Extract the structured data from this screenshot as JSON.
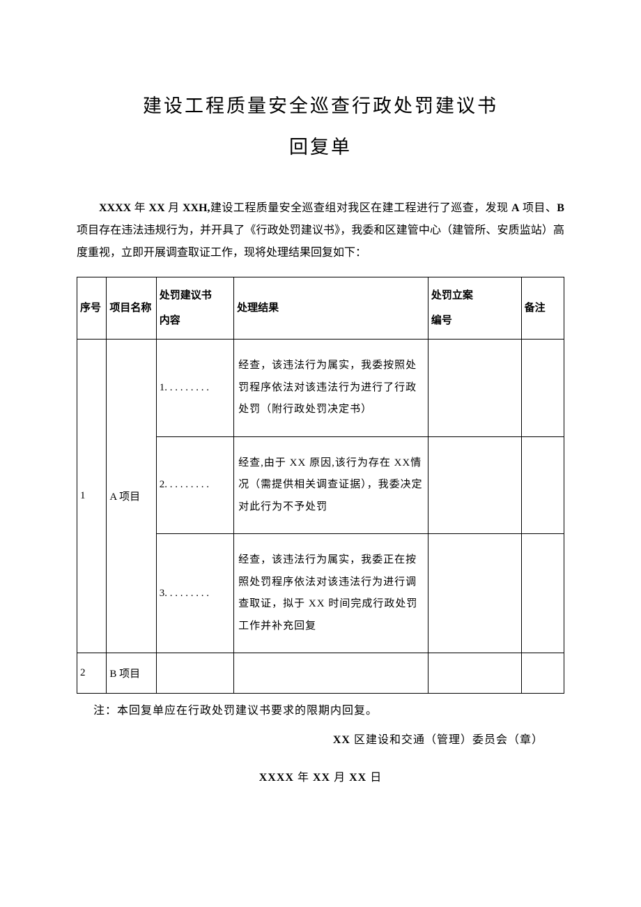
{
  "title_line1": "建设工程质量安全巡查行政处罚建议书",
  "title_line2": "回复单",
  "intro_year": "XXXX",
  "intro_month": "XX",
  "intro_day": "XXH,",
  "intro_part1": "建设工程质量安全巡查组对我区在建工程进行了巡查，发现 ",
  "intro_a": "A",
  "intro_part2": " 项目、",
  "intro_b": "B",
  "intro_part3": " 项目存在违法违规行为，并开具了《行政处罚建议书》，我委和区建管中心（建管所、安质监站）高度重视，立即开展调查取证工作，现将处理结果回复如下：",
  "headers": {
    "seq": "序号",
    "project": "项目名称",
    "suggest_line1": "处罚建议书",
    "suggest_line2": "内容",
    "result": "处理结果",
    "case_line1": "处罚立案",
    "case_line2": "编号",
    "remark": "备注"
  },
  "rows": {
    "row1_seq": "1",
    "row1_project": "A 项目",
    "row1_suggest1": "1. . . . . . . . .",
    "row1_result1": "经查，该违法行为属实，我委按照处罚程序依法对该违法行为进行了行政处罚（附行政处罚决定书）",
    "row1_suggest2": "2. . . . . . . . .",
    "row1_result2": "经查,由于 XX 原因,该行为存在 XX情况（需提供相关调查证据），我委决定对此行为不予处罚",
    "row1_suggest3": "3. . . . . . . . .",
    "row1_result3": "经查，该违法行为属实，我委正在按照处罚程序依法对该违法行为进行调查取证，拟于 XX 时间完成行政处罚工作并补充回复",
    "row2_seq": "2",
    "row2_project": "B 项目"
  },
  "note": "注：本回复单应在行政处罚建议书要求的限期内回复。",
  "signature_prefix": "XX ",
  "signature_text": "区建设和交通（管理）委员会（章）",
  "date_year": "XXXX",
  "date_month": "XX",
  "date_day": "XX",
  "date_year_label": " 年 ",
  "date_month_label": " 月 ",
  "date_day_label": " 日"
}
